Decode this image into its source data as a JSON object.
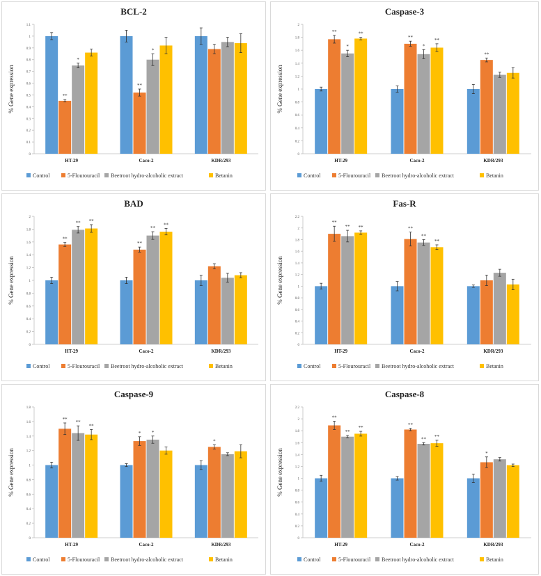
{
  "legend": [
    "Control",
    "5-Flourouracil",
    "Beetroot hydro-alcoholic extract",
    "Betanin"
  ],
  "colors": {
    "series": [
      "#5b9bd5",
      "#ed7d31",
      "#a5a5a5",
      "#ffc000"
    ]
  },
  "chart_data": [
    {
      "type": "bar",
      "title": "BCL-2",
      "ylabel": "% Gene expression",
      "categories": [
        "HT-29",
        "Caco-2",
        "KDR/293"
      ],
      "ylim": [
        0,
        1.1
      ],
      "yticks": [
        "0",
        "0.1",
        "0.2",
        "0.3",
        "0.4",
        "0.5",
        "0.6",
        "0.7",
        "0.8",
        "0.9",
        "1",
        "1.1"
      ],
      "series": [
        {
          "name": "Control",
          "values": [
            1.0,
            1.0,
            1.0
          ],
          "errors": [
            0.03,
            0.05,
            0.07
          ],
          "sig": [
            "",
            "",
            ""
          ]
        },
        {
          "name": "5-Flourouracil",
          "values": [
            0.45,
            0.52,
            0.89
          ],
          "errors": [
            0.01,
            0.03,
            0.04
          ],
          "sig": [
            "**",
            "**",
            ""
          ]
        },
        {
          "name": "Beetroot hydro-alcoholic extract",
          "values": [
            0.75,
            0.8,
            0.95
          ],
          "errors": [
            0.02,
            0.05,
            0.04
          ],
          "sig": [
            "*",
            "*",
            ""
          ]
        },
        {
          "name": "Betanin",
          "values": [
            0.86,
            0.92,
            0.94
          ],
          "errors": [
            0.03,
            0.07,
            0.08
          ],
          "sig": [
            "",
            "",
            ""
          ]
        }
      ]
    },
    {
      "type": "bar",
      "title": "Caspase-3",
      "ylabel": "% Gene expression",
      "categories": [
        "HT-29",
        "Caco-2",
        "KDR/293"
      ],
      "ylim": [
        0,
        2
      ],
      "yticks": [
        "0",
        "0.2",
        "0.4",
        "0.6",
        "0.8",
        "1",
        "1.2",
        "1.4",
        "1.6",
        "1.8",
        "2"
      ],
      "series": [
        {
          "name": "Control",
          "values": [
            1.0,
            1.0,
            1.0
          ],
          "errors": [
            0.03,
            0.05,
            0.07
          ],
          "sig": [
            "",
            "",
            ""
          ]
        },
        {
          "name": "5-Flourouracil",
          "values": [
            1.77,
            1.7,
            1.45
          ],
          "errors": [
            0.06,
            0.04,
            0.03
          ],
          "sig": [
            "**",
            "**",
            "**"
          ]
        },
        {
          "name": "Beetroot hydro-alcoholic extract",
          "values": [
            1.55,
            1.54,
            1.22
          ],
          "errors": [
            0.05,
            0.07,
            0.04
          ],
          "sig": [
            "*",
            "*",
            ""
          ]
        },
        {
          "name": "Betanin",
          "values": [
            1.78,
            1.64,
            1.25
          ],
          "errors": [
            0.02,
            0.06,
            0.08
          ],
          "sig": [
            "**",
            "**",
            ""
          ]
        }
      ]
    },
    {
      "type": "bar",
      "title": "BAD",
      "ylabel": "% Gene expression",
      "categories": [
        "HT-29",
        "Caco-2",
        "KDR/293"
      ],
      "ylim": [
        0,
        2
      ],
      "yticks": [
        "0",
        "0.2",
        "0.4",
        "0.6",
        "0.8",
        "1",
        "1.2",
        "1.4",
        "1.6",
        "1.8",
        "2"
      ],
      "series": [
        {
          "name": "Control",
          "values": [
            1.0,
            1.0,
            1.0
          ],
          "errors": [
            0.05,
            0.05,
            0.08
          ],
          "sig": [
            "",
            "",
            ""
          ]
        },
        {
          "name": "5-Flourouracil",
          "values": [
            1.56,
            1.48,
            1.22
          ],
          "errors": [
            0.03,
            0.04,
            0.04
          ],
          "sig": [
            "**",
            "**",
            ""
          ]
        },
        {
          "name": "Beetroot hydro-alcoholic extract",
          "values": [
            1.79,
            1.7,
            1.04
          ],
          "errors": [
            0.05,
            0.06,
            0.07
          ],
          "sig": [
            "**",
            "**",
            ""
          ]
        },
        {
          "name": "Betanin",
          "values": [
            1.81,
            1.76,
            1.08
          ],
          "errors": [
            0.06,
            0.05,
            0.04
          ],
          "sig": [
            "**",
            "**",
            ""
          ]
        }
      ]
    },
    {
      "type": "bar",
      "title": "Fas-R",
      "ylabel": "% Gene expression",
      "categories": [
        "HT-29",
        "Caco-2",
        "KDR/293"
      ],
      "ylim": [
        0,
        2.2
      ],
      "yticks": [
        "0",
        "0.2",
        "0.4",
        "0.6",
        "0.8",
        "1",
        "1.2",
        "1.4",
        "1.6",
        "1.8",
        "2",
        "2.2"
      ],
      "series": [
        {
          "name": "Control",
          "values": [
            1.0,
            1.0,
            1.0
          ],
          "errors": [
            0.05,
            0.08,
            0.02
          ],
          "sig": [
            "",
            "",
            ""
          ]
        },
        {
          "name": "5-Flourouracil",
          "values": [
            1.9,
            1.81,
            1.1
          ],
          "errors": [
            0.13,
            0.12,
            0.09
          ],
          "sig": [
            "**",
            "**",
            ""
          ]
        },
        {
          "name": "Beetroot hydro-alcoholic extract",
          "values": [
            1.86,
            1.75,
            1.23
          ],
          "errors": [
            0.1,
            0.05,
            0.06
          ],
          "sig": [
            "**",
            "**",
            ""
          ]
        },
        {
          "name": "Betanin",
          "values": [
            1.92,
            1.67,
            1.03
          ],
          "errors": [
            0.03,
            0.04,
            0.09
          ],
          "sig": [
            "**",
            "**",
            ""
          ]
        }
      ]
    },
    {
      "type": "bar",
      "title": "Caspase-9",
      "ylabel": "% Gene expression",
      "categories": [
        "HT-29",
        "Caco-2",
        "KDR/293"
      ],
      "ylim": [
        0,
        1.8
      ],
      "yticks": [
        "0",
        "0.2",
        "0.4",
        "0.6",
        "0.8",
        "1",
        "1.2",
        "1.4",
        "1.6",
        "1.8"
      ],
      "series": [
        {
          "name": "Control",
          "values": [
            1.0,
            1.0,
            1.0
          ],
          "errors": [
            0.04,
            0.02,
            0.06
          ],
          "sig": [
            "",
            "",
            ""
          ]
        },
        {
          "name": "5-Flourouracil",
          "values": [
            1.5,
            1.33,
            1.25
          ],
          "errors": [
            0.08,
            0.06,
            0.03
          ],
          "sig": [
            "**",
            "*",
            "*"
          ]
        },
        {
          "name": "Beetroot hydro-alcoholic extract",
          "values": [
            1.44,
            1.35,
            1.15
          ],
          "errors": [
            0.1,
            0.05,
            0.02
          ],
          "sig": [
            "**",
            "*",
            ""
          ]
        },
        {
          "name": "Betanin",
          "values": [
            1.42,
            1.2,
            1.19
          ],
          "errors": [
            0.07,
            0.05,
            0.09
          ],
          "sig": [
            "**",
            "",
            ""
          ]
        }
      ]
    },
    {
      "type": "bar",
      "title": "Caspase-8",
      "ylabel": "% Gene expression",
      "categories": [
        "HT-29",
        "Caco-2",
        "KDR/293"
      ],
      "ylim": [
        0,
        2.2
      ],
      "yticks": [
        "0",
        "0.2",
        "0.4",
        "0.6",
        "0.8",
        "1",
        "1.2",
        "1.4",
        "1.6",
        "1.8",
        "2",
        "2.2"
      ],
      "series": [
        {
          "name": "Control",
          "values": [
            1.0,
            1.0,
            1.0
          ],
          "errors": [
            0.05,
            0.03,
            0.07
          ],
          "sig": [
            "",
            "",
            ""
          ]
        },
        {
          "name": "5-Flourouracil",
          "values": [
            1.89,
            1.82,
            1.27
          ],
          "errors": [
            0.07,
            0.02,
            0.09
          ],
          "sig": [
            "**",
            "**",
            "*"
          ]
        },
        {
          "name": "Beetroot hydro-alcoholic extract",
          "values": [
            1.7,
            1.58,
            1.32
          ],
          "errors": [
            0.02,
            0.02,
            0.03
          ],
          "sig": [
            "**",
            "**",
            ""
          ]
        },
        {
          "name": "Betanin",
          "values": [
            1.75,
            1.59,
            1.22
          ],
          "errors": [
            0.04,
            0.05,
            0.02
          ],
          "sig": [
            "**",
            "**",
            ""
          ]
        }
      ]
    }
  ]
}
